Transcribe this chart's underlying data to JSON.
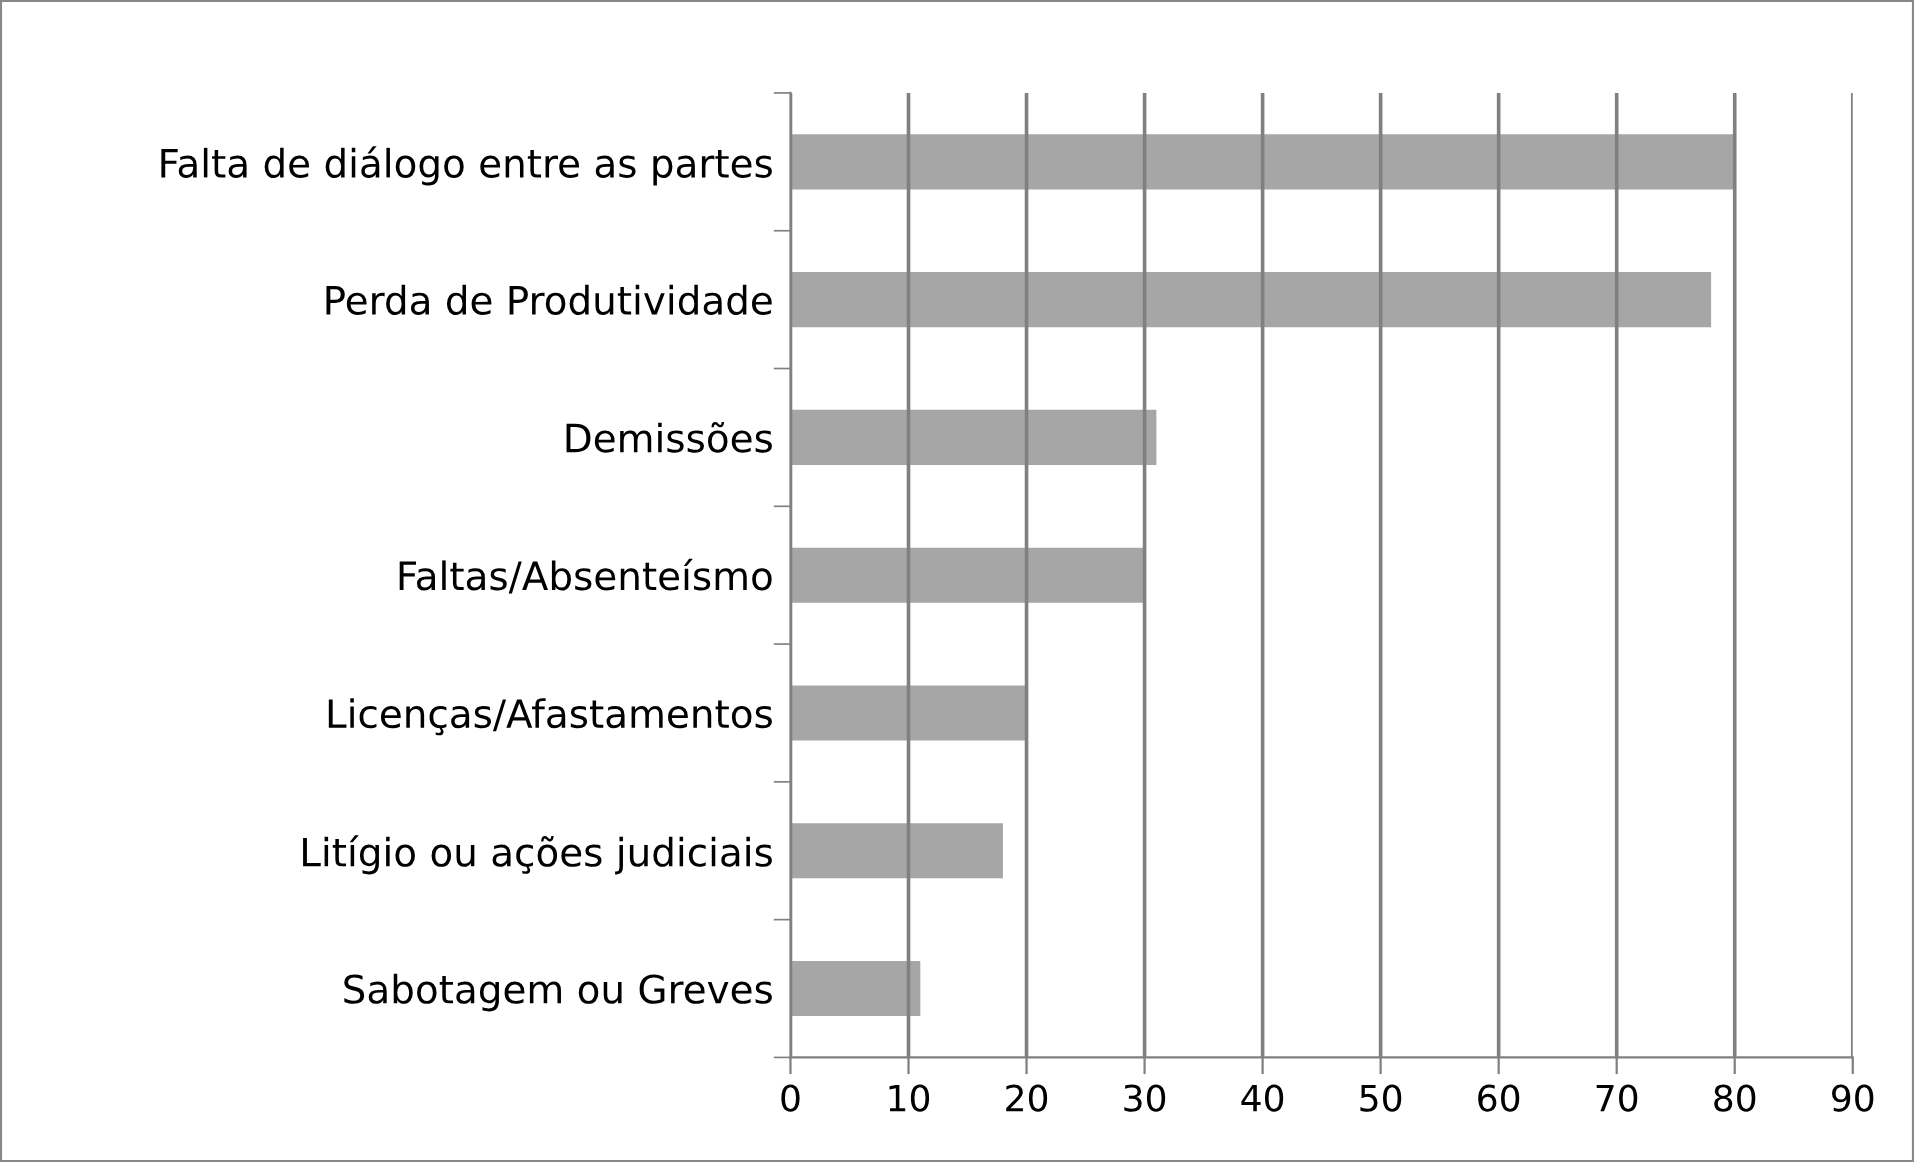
{
  "chart_data": {
    "type": "bar",
    "orientation": "horizontal",
    "categories": [
      "Falta de diálogo entre as partes",
      "Perda de Produtividade",
      "Demissões",
      "Faltas/Absenteísmo",
      "Licenças/Afastamentos",
      "Litígio ou ações judiciais",
      "Sabotagem ou Greves"
    ],
    "values": [
      80,
      78,
      31,
      30,
      20,
      18,
      11
    ],
    "color": "#a6a6a6",
    "xlim": [
      0,
      90
    ],
    "xticks": [
      0,
      10,
      20,
      30,
      40,
      50,
      60,
      70,
      80,
      90
    ],
    "grid": "x",
    "legend": false
  }
}
